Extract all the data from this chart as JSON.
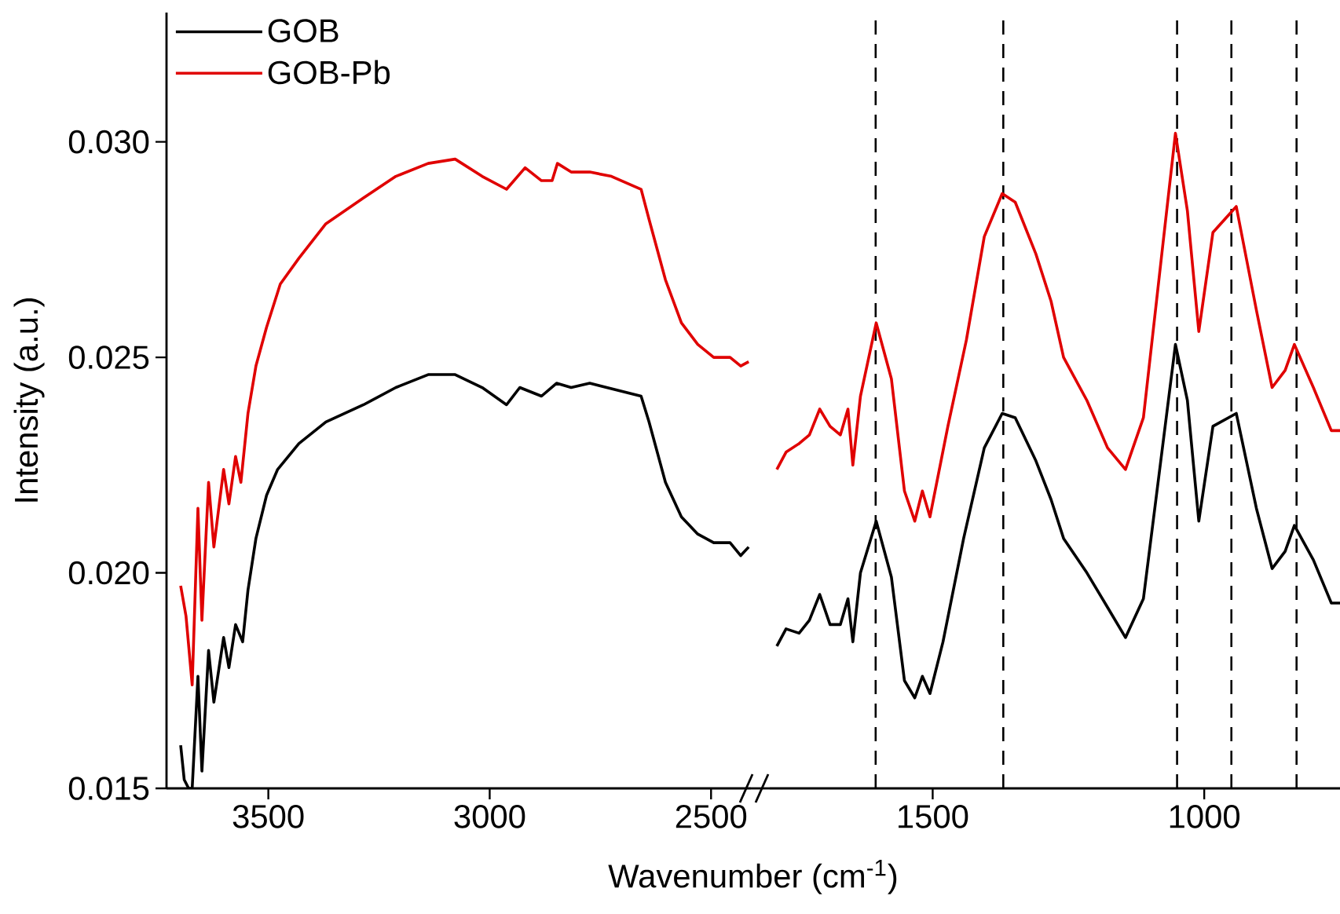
{
  "chart_data": [
    {
      "type": "line",
      "xlabel": "Wavenumber (cm$^{-1}$)",
      "ylabel": "Intensity (a.u.)",
      "xlim": [
        3730,
        2410
      ],
      "ylim": [
        0.015,
        0.033
      ],
      "xticks": [
        3500,
        3000,
        2500
      ],
      "yticks": [
        {
          "value": 0.015,
          "label": "0.015"
        },
        {
          "value": 0.02,
          "label": "0.020"
        },
        {
          "value": 0.025,
          "label": "0.025"
        },
        {
          "value": 0.03,
          "label": "0.030"
        }
      ],
      "legend": "top left",
      "series": [
        {
          "name": "GOB",
          "color": "#000000",
          "x": [
            3698,
            3690,
            3680,
            3672,
            3659,
            3650,
            3635,
            3623,
            3601,
            3589,
            3574,
            3558,
            3546,
            3528,
            3504,
            3479,
            3431,
            3370,
            3285,
            3212,
            3139,
            3078,
            3017,
            2962,
            2932,
            2883,
            2849,
            2816,
            2774,
            2658,
            2640,
            2603,
            2567,
            2530,
            2494,
            2457,
            2433,
            2415
          ],
          "values": [
            0.016,
            0.0152,
            0.015,
            0.015,
            0.0176,
            0.0154,
            0.0182,
            0.017,
            0.0185,
            0.0178,
            0.0188,
            0.0184,
            0.0196,
            0.0208,
            0.0218,
            0.0224,
            0.023,
            0.0235,
            0.0239,
            0.0243,
            0.0246,
            0.0246,
            0.0243,
            0.0239,
            0.0243,
            0.0241,
            0.0244,
            0.0243,
            0.0244,
            0.0241,
            0.0235,
            0.0221,
            0.0213,
            0.0209,
            0.0207,
            0.0207,
            0.0204,
            0.0206
          ]
        },
        {
          "name": "GOB-Pb",
          "color": "#e00000",
          "x": [
            3698,
            3686,
            3672,
            3659,
            3650,
            3635,
            3623,
            3601,
            3589,
            3574,
            3562,
            3546,
            3528,
            3504,
            3473,
            3431,
            3370,
            3285,
            3212,
            3139,
            3078,
            3017,
            2962,
            2920,
            2883,
            2859,
            2847,
            2816,
            2774,
            2725,
            2658,
            2640,
            2603,
            2567,
            2530,
            2494,
            2457,
            2433,
            2415
          ],
          "values": [
            0.0197,
            0.019,
            0.0174,
            0.0215,
            0.0189,
            0.0221,
            0.0206,
            0.0224,
            0.0216,
            0.0227,
            0.0221,
            0.0237,
            0.0248,
            0.0257,
            0.0267,
            0.0273,
            0.0281,
            0.0287,
            0.0292,
            0.0295,
            0.0296,
            0.0292,
            0.0289,
            0.0294,
            0.0291,
            0.0291,
            0.0295,
            0.0293,
            0.0293,
            0.0292,
            0.0289,
            0.0282,
            0.0268,
            0.0258,
            0.0253,
            0.025,
            0.025,
            0.0248,
            0.0249
          ]
        }
      ]
    },
    {
      "type": "line",
      "xlim": [
        1800,
        750
      ],
      "ylim": [
        0.015,
        0.033
      ],
      "xticks": [
        1500,
        1000
      ],
      "tick_labels": "x",
      "ref_lines": [
        {
          "axis": "x",
          "value": 1605,
          "color": "#000000",
          "line_style": "dashed"
        },
        {
          "axis": "x",
          "value": 1370,
          "color": "#000000",
          "line_style": "dashed"
        },
        {
          "axis": "x",
          "value": 1050,
          "color": "#000000",
          "line_style": "dashed"
        },
        {
          "axis": "x",
          "value": 950,
          "color": "#000000",
          "line_style": "dashed"
        },
        {
          "axis": "x",
          "value": 830,
          "color": "#000000",
          "line_style": "dashed"
        }
      ],
      "series": [
        {
          "color": "#000000",
          "x": [
            1787,
            1770,
            1746,
            1727,
            1708,
            1689,
            1670,
            1656,
            1647,
            1633,
            1604,
            1576,
            1552,
            1533,
            1519,
            1505,
            1481,
            1443,
            1405,
            1372,
            1348,
            1310,
            1282,
            1259,
            1216,
            1178,
            1145,
            1112,
            1079,
            1053,
            1031,
            1010,
            984,
            941,
            904,
            875,
            851,
            834,
            799,
            766,
            750
          ],
          "values": [
            0.0183,
            0.0187,
            0.0186,
            0.0189,
            0.0195,
            0.0188,
            0.0188,
            0.0194,
            0.0184,
            0.02,
            0.0212,
            0.0199,
            0.0175,
            0.0171,
            0.0176,
            0.0172,
            0.0184,
            0.0208,
            0.0229,
            0.0237,
            0.0236,
            0.0226,
            0.0217,
            0.0208,
            0.02,
            0.0192,
            0.0185,
            0.0194,
            0.0227,
            0.0253,
            0.024,
            0.0212,
            0.0234,
            0.0237,
            0.0215,
            0.0201,
            0.0205,
            0.0211,
            0.0203,
            0.0193,
            0.0193
          ]
        },
        {
          "color": "#e00000",
          "x": [
            1787,
            1770,
            1746,
            1727,
            1708,
            1689,
            1670,
            1656,
            1647,
            1633,
            1604,
            1576,
            1552,
            1533,
            1519,
            1505,
            1472,
            1438,
            1405,
            1372,
            1348,
            1310,
            1282,
            1259,
            1216,
            1178,
            1145,
            1112,
            1079,
            1053,
            1031,
            1010,
            984,
            941,
            904,
            875,
            851,
            834,
            799,
            766,
            750
          ],
          "values": [
            0.0224,
            0.0228,
            0.023,
            0.0232,
            0.0238,
            0.0234,
            0.0232,
            0.0238,
            0.0225,
            0.0241,
            0.0258,
            0.0245,
            0.0219,
            0.0212,
            0.0219,
            0.0213,
            0.0234,
            0.0254,
            0.0278,
            0.0288,
            0.0286,
            0.0274,
            0.0263,
            0.025,
            0.024,
            0.0229,
            0.0224,
            0.0236,
            0.0273,
            0.0302,
            0.0284,
            0.0256,
            0.0279,
            0.0285,
            0.0261,
            0.0243,
            0.0247,
            0.0253,
            0.0243,
            0.0233,
            0.0233
          ]
        }
      ]
    }
  ]
}
